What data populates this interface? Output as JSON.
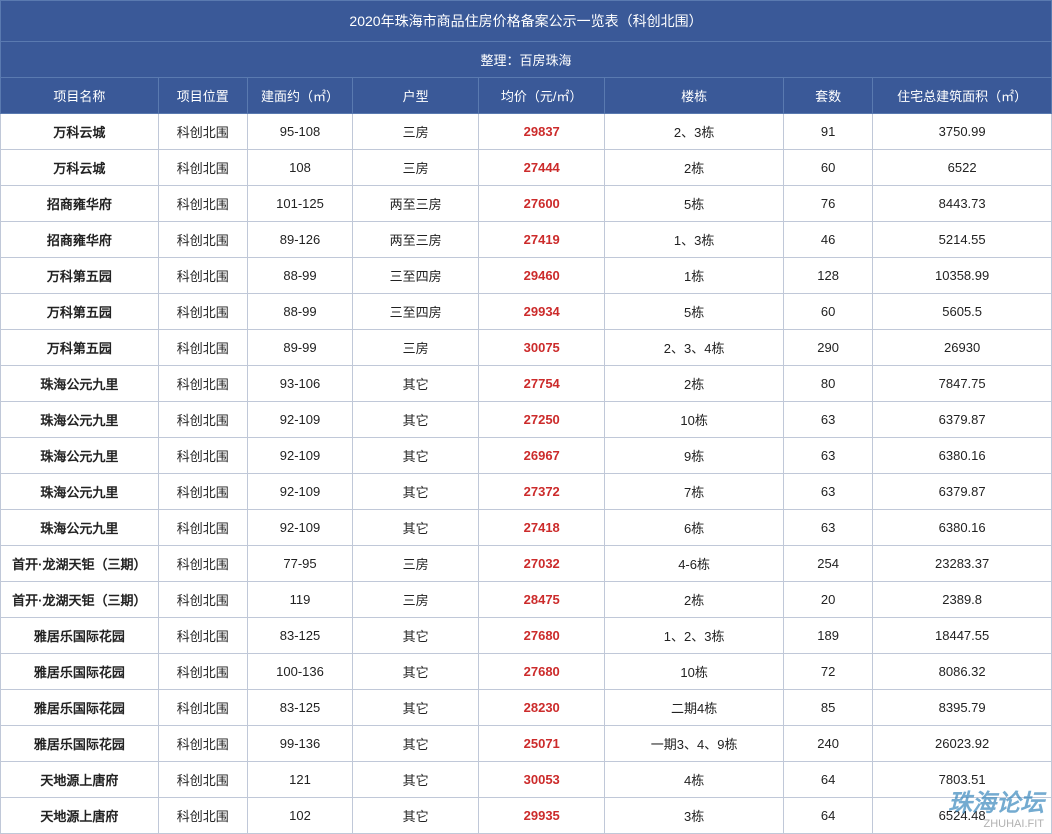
{
  "title": "2020年珠海市商品住房价格备案公示一览表（科创北围）",
  "subtitle": "整理：百房珠海",
  "columns": [
    "项目名称",
    "项目位置",
    "建面约（㎡）",
    "户型",
    "均价（元/㎡）",
    "楼栋",
    "套数",
    "住宅总建筑面积（㎡）"
  ],
  "rows": [
    [
      "万科云城",
      "科创北围",
      "95-108",
      "三房",
      "29837",
      "2、3栋",
      "91",
      "3750.99"
    ],
    [
      "万科云城",
      "科创北围",
      "108",
      "三房",
      "27444",
      "2栋",
      "60",
      "6522"
    ],
    [
      "招商雍华府",
      "科创北围",
      "101-125",
      "两至三房",
      "27600",
      "5栋",
      "76",
      "8443.73"
    ],
    [
      "招商雍华府",
      "科创北围",
      "89-126",
      "两至三房",
      "27419",
      "1、3栋",
      "46",
      "5214.55"
    ],
    [
      "万科第五园",
      "科创北围",
      "88-99",
      "三至四房",
      "29460",
      "1栋",
      "128",
      "10358.99"
    ],
    [
      "万科第五园",
      "科创北围",
      "88-99",
      "三至四房",
      "29934",
      "5栋",
      "60",
      "5605.5"
    ],
    [
      "万科第五园",
      "科创北围",
      "89-99",
      "三房",
      "30075",
      "2、3、4栋",
      "290",
      "26930"
    ],
    [
      "珠海公元九里",
      "科创北围",
      "93-106",
      "其它",
      "27754",
      "2栋",
      "80",
      "7847.75"
    ],
    [
      "珠海公元九里",
      "科创北围",
      "92-109",
      "其它",
      "27250",
      "10栋",
      "63",
      "6379.87"
    ],
    [
      "珠海公元九里",
      "科创北围",
      "92-109",
      "其它",
      "26967",
      "9栋",
      "63",
      "6380.16"
    ],
    [
      "珠海公元九里",
      "科创北围",
      "92-109",
      "其它",
      "27372",
      "7栋",
      "63",
      "6379.87"
    ],
    [
      "珠海公元九里",
      "科创北围",
      "92-109",
      "其它",
      "27418",
      "6栋",
      "63",
      "6380.16"
    ],
    [
      "首开·龙湖天钜（三期）",
      "科创北围",
      "77-95",
      "三房",
      "27032",
      "4-6栋",
      "254",
      "23283.37"
    ],
    [
      "首开·龙湖天钜（三期）",
      "科创北围",
      "119",
      "三房",
      "28475",
      "2栋",
      "20",
      "2389.8"
    ],
    [
      "雅居乐国际花园",
      "科创北围",
      "83-125",
      "其它",
      "27680",
      "1、2、3栋",
      "189",
      "18447.55"
    ],
    [
      "雅居乐国际花园",
      "科创北围",
      "100-136",
      "其它",
      "27680",
      "10栋",
      "72",
      "8086.32"
    ],
    [
      "雅居乐国际花园",
      "科创北围",
      "83-125",
      "其它",
      "28230",
      "二期4栋",
      "85",
      "8395.79"
    ],
    [
      "雅居乐国际花园",
      "科创北围",
      "99-136",
      "其它",
      "25071",
      "一期3、4、9栋",
      "240",
      "26023.92"
    ],
    [
      "天地源上唐府",
      "科创北围",
      "121",
      "其它",
      "30053",
      "4栋",
      "64",
      "7803.51"
    ],
    [
      "天地源上唐府",
      "科创北围",
      "102",
      "其它",
      "29935",
      "3栋",
      "64",
      "6524.48"
    ]
  ],
  "watermark": {
    "text": "珠海论坛",
    "sub": "ZHUHAI.FIT"
  },
  "styling": {
    "header_bg": "#3a5998",
    "header_text": "#ffffff",
    "header_border": "#5a7ab0",
    "body_border": "#c0c8d8",
    "body_text": "#222222",
    "price_text": "#cc2b2b",
    "name_weight": "bold",
    "price_weight": "bold",
    "font_size_body": 13,
    "font_size_title": 14,
    "col_widths_pct": [
      15,
      8.5,
      10,
      12,
      12,
      17,
      8.5,
      17
    ],
    "price_col_index": 4,
    "name_col_index": 0
  }
}
